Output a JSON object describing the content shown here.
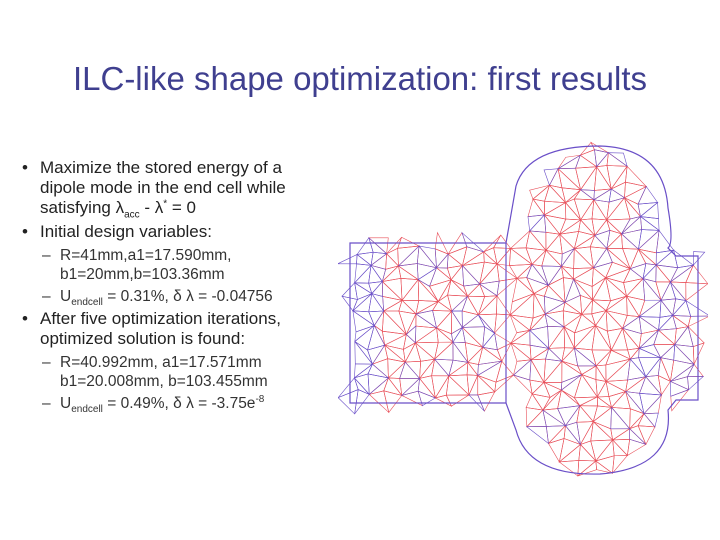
{
  "slide": {
    "title": "ILC-like shape optimization: first results",
    "bullet_marker": "•",
    "dash_marker": "–"
  },
  "bullets": [
    {
      "lines": [
        "Maximize the stored energy of a",
        "dipole mode in the end cell while"
      ],
      "satisfy": {
        "pre": "satisfying ",
        "lam": "λ",
        "sub": "acc",
        "mid": " - ",
        "lam2": "λ",
        "sup": "*",
        "post": " = 0"
      }
    },
    {
      "text": "Initial design variables:"
    },
    {
      "text": "After five optimization iterations, optimized solution is found:"
    }
  ],
  "initial": {
    "line1": "R=41mm,a1=17.590mm,",
    "line2": "b1=20mm,b=103.36mm",
    "u_prefix": "U",
    "u_sub": "endcell",
    "u_suffix": " = 0.31%, δ λ = -0.04756"
  },
  "optimized": {
    "line1": "R=40.992mm, a1=17.571mm",
    "line2": "b1=20.008mm, b=103.455mm",
    "u_prefix": "U",
    "u_sub": "endcell",
    "u_suffix": " = 0.49%, δ λ = -3.75e",
    "u_sup": "-8"
  },
  "colors": {
    "title": "#3f3f8f",
    "mesh_red": "#e8505a",
    "mesh_blue": "#6a4fc8"
  }
}
